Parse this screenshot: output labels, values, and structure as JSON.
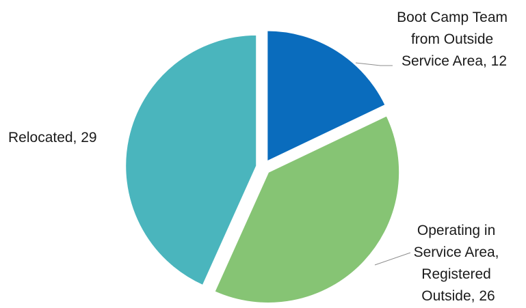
{
  "chart_data": {
    "type": "pie",
    "slices": [
      {
        "label": "Boot Camp Team from Outside Service Area",
        "value": 12,
        "color": "#0a6cbd",
        "label_lines": [
          "Boot Camp Team",
          "from Outside",
          "Service Area, 12"
        ]
      },
      {
        "label": "Operating in Service Area, Registered Outside",
        "value": 26,
        "color": "#86c474",
        "label_lines": [
          "Operating in",
          "Service Area,",
          "Registered",
          "Outside, 26"
        ]
      },
      {
        "label": "Relocated",
        "value": 29,
        "color": "#4ab5bd",
        "label_lines": [
          "Relocated, 29"
        ]
      }
    ],
    "start_angle_deg": 0,
    "direction": "clockwise",
    "exploded": true,
    "legend": "none",
    "title": ""
  }
}
